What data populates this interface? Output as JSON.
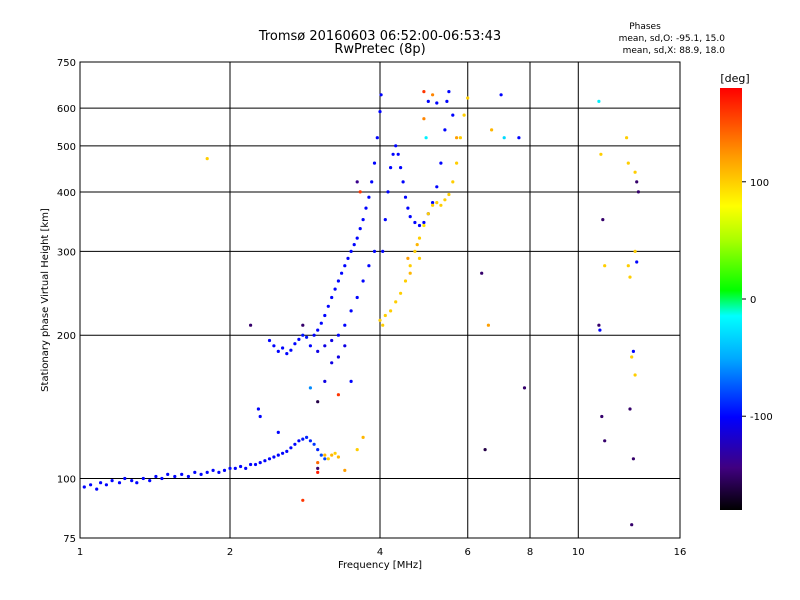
{
  "chart_data": {
    "type": "scatter",
    "title": "Tromsø 20160603 06:52:00-06:53:43",
    "subtitle": "RwPretec (8p)",
    "xlabel": "Frequency [MHz]",
    "ylabel": "Stationary phase Virtual Height [km]",
    "x_scale": "log",
    "y_scale": "log",
    "xlim": [
      1,
      16
    ],
    "ylim": [
      75,
      750
    ],
    "x_ticks": [
      1,
      2,
      4,
      6,
      8,
      10,
      16
    ],
    "y_ticks": [
      75,
      100,
      200,
      300,
      400,
      500,
      600,
      750
    ],
    "grid": true,
    "stats": {
      "title": "Phases",
      "line1": "mean, sd,O: -95.1, 15.0",
      "line2": "mean, sd,X:  88.9, 18.0"
    },
    "colorbar": {
      "label": "[deg]",
      "range": [
        -180,
        180
      ],
      "ticks": [
        100,
        0,
        -100
      ]
    },
    "series": [
      {
        "points": [
          [
            1.02,
            96,
            -100
          ],
          [
            1.05,
            97,
            -100
          ],
          [
            1.08,
            95,
            -100
          ],
          [
            1.1,
            98,
            -100
          ],
          [
            1.13,
            97,
            -100
          ],
          [
            1.16,
            99,
            -100
          ],
          [
            1.2,
            98,
            -100
          ],
          [
            1.23,
            100,
            -100
          ],
          [
            1.27,
            99,
            -100
          ],
          [
            1.3,
            98,
            -100
          ],
          [
            1.34,
            100,
            -100
          ],
          [
            1.38,
            99,
            -100
          ],
          [
            1.42,
            101,
            -100
          ],
          [
            1.46,
            100,
            -100
          ],
          [
            1.5,
            102,
            -100
          ],
          [
            1.55,
            101,
            -100
          ],
          [
            1.6,
            102,
            -100
          ],
          [
            1.65,
            101,
            -100
          ],
          [
            1.7,
            103,
            -100
          ],
          [
            1.75,
            102,
            -100
          ],
          [
            1.8,
            103,
            -100
          ],
          [
            1.85,
            104,
            -100
          ],
          [
            1.9,
            103,
            -100
          ],
          [
            1.95,
            104,
            -100
          ],
          [
            2.0,
            105,
            -100
          ],
          [
            2.05,
            105,
            -100
          ],
          [
            2.1,
            106,
            -100
          ],
          [
            2.15,
            105,
            -100
          ],
          [
            2.2,
            107,
            -100
          ],
          [
            2.25,
            107,
            -100
          ],
          [
            2.3,
            108,
            -100
          ],
          [
            2.35,
            109,
            -100
          ],
          [
            2.4,
            110,
            -100
          ],
          [
            2.45,
            111,
            -100
          ],
          [
            2.5,
            112,
            -100
          ],
          [
            2.55,
            113,
            -100
          ],
          [
            2.6,
            114,
            -100
          ],
          [
            2.65,
            116,
            -100
          ],
          [
            2.7,
            118,
            -100
          ],
          [
            2.75,
            120,
            -100
          ],
          [
            2.8,
            121,
            -95
          ],
          [
            2.85,
            122,
            -90
          ],
          [
            2.9,
            120,
            -90
          ],
          [
            2.95,
            118,
            -85
          ],
          [
            3.0,
            115,
            -90
          ],
          [
            3.05,
            112,
            -80
          ],
          [
            3.1,
            110,
            -80
          ],
          [
            2.3,
            135,
            -100
          ],
          [
            2.28,
            140,
            -100
          ],
          [
            2.5,
            125,
            -100
          ]
        ]
      },
      {
        "points": [
          [
            2.4,
            195,
            -100
          ],
          [
            2.45,
            190,
            -100
          ],
          [
            2.5,
            185,
            -100
          ],
          [
            2.55,
            188,
            -100
          ],
          [
            2.6,
            183,
            -100
          ],
          [
            2.65,
            186,
            -100
          ],
          [
            2.7,
            192,
            -100
          ],
          [
            2.75,
            196,
            -100
          ],
          [
            2.8,
            200,
            -95
          ],
          [
            2.85,
            198,
            -95
          ],
          [
            2.9,
            190,
            -100
          ],
          [
            2.95,
            200,
            -100
          ],
          [
            3.0,
            205,
            -100
          ],
          [
            3.05,
            212,
            -100
          ],
          [
            3.1,
            220,
            -100
          ],
          [
            3.15,
            230,
            -100
          ],
          [
            3.2,
            240,
            -100
          ],
          [
            3.25,
            250,
            -100
          ],
          [
            3.3,
            260,
            -100
          ],
          [
            3.35,
            270,
            -100
          ],
          [
            3.4,
            280,
            -100
          ],
          [
            3.45,
            290,
            -100
          ],
          [
            3.5,
            300,
            -100
          ],
          [
            3.55,
            310,
            -100
          ],
          [
            3.6,
            320,
            -100
          ],
          [
            3.65,
            335,
            -100
          ],
          [
            3.7,
            350,
            -100
          ],
          [
            3.75,
            370,
            -100
          ],
          [
            3.8,
            390,
            -100
          ],
          [
            3.85,
            420,
            -100
          ],
          [
            3.9,
            460,
            -100
          ],
          [
            3.95,
            520,
            -100
          ],
          [
            4.0,
            590,
            -100
          ],
          [
            4.02,
            640,
            -100
          ],
          [
            3.0,
            185,
            -110
          ],
          [
            3.1,
            190,
            -110
          ],
          [
            3.2,
            195,
            -110
          ],
          [
            3.3,
            200,
            -100
          ],
          [
            3.4,
            210,
            -100
          ],
          [
            3.5,
            225,
            -100
          ],
          [
            3.6,
            240,
            -100
          ],
          [
            3.7,
            260,
            -100
          ],
          [
            3.8,
            280,
            -100
          ],
          [
            3.9,
            300,
            -100
          ],
          [
            3.2,
            175,
            -110
          ],
          [
            3.3,
            180,
            -110
          ],
          [
            3.4,
            190,
            -110
          ]
        ]
      },
      {
        "points": [
          [
            4.05,
            300,
            -100
          ],
          [
            4.1,
            350,
            -100
          ],
          [
            4.15,
            400,
            -100
          ],
          [
            4.2,
            450,
            -100
          ],
          [
            4.25,
            480,
            -100
          ],
          [
            4.3,
            500,
            -100
          ],
          [
            4.35,
            480,
            -100
          ],
          [
            4.4,
            450,
            -100
          ],
          [
            4.45,
            420,
            -100
          ],
          [
            4.5,
            390,
            -100
          ],
          [
            4.55,
            370,
            -100
          ],
          [
            4.6,
            355,
            -100
          ],
          [
            4.7,
            345,
            -100
          ],
          [
            4.8,
            340,
            -100
          ],
          [
            4.9,
            345,
            -100
          ],
          [
            5.0,
            360,
            -100
          ],
          [
            5.1,
            380,
            -100
          ],
          [
            5.2,
            410,
            -100
          ],
          [
            5.3,
            460,
            -100
          ],
          [
            5.4,
            540,
            -100
          ],
          [
            5.45,
            620,
            -100
          ],
          [
            5.5,
            650,
            -100
          ]
        ]
      },
      {
        "points": [
          [
            4.0,
            215,
            100
          ],
          [
            4.05,
            210,
            100
          ],
          [
            4.1,
            220,
            100
          ],
          [
            4.2,
            225,
            100
          ],
          [
            4.3,
            235,
            100
          ],
          [
            4.4,
            245,
            100
          ],
          [
            4.5,
            260,
            100
          ],
          [
            4.6,
            280,
            100
          ],
          [
            4.7,
            300,
            100
          ],
          [
            4.8,
            320,
            100
          ],
          [
            4.9,
            340,
            90
          ],
          [
            5.0,
            360,
            100
          ],
          [
            5.1,
            375,
            100
          ],
          [
            5.2,
            380,
            100
          ],
          [
            5.3,
            375,
            100
          ],
          [
            5.4,
            385,
            100
          ],
          [
            5.5,
            395,
            100
          ],
          [
            5.6,
            420,
            100
          ],
          [
            5.7,
            460,
            100
          ],
          [
            5.8,
            520,
            100
          ],
          [
            5.9,
            580,
            100
          ],
          [
            6.0,
            630,
            100
          ],
          [
            4.6,
            270,
            110
          ],
          [
            4.55,
            290,
            120
          ],
          [
            4.75,
            310,
            110
          ],
          [
            4.8,
            290,
            100
          ]
        ]
      },
      {
        "points": [
          [
            3.1,
            112,
            110
          ],
          [
            3.2,
            112,
            110
          ],
          [
            3.3,
            111,
            110
          ],
          [
            3.15,
            110,
            100
          ],
          [
            3.25,
            113,
            100
          ],
          [
            3.0,
            105,
            -150
          ],
          [
            3.0,
            108,
            140
          ],
          [
            3.0,
            103,
            170
          ],
          [
            2.8,
            90,
            160
          ],
          [
            3.4,
            104,
            120
          ],
          [
            3.6,
            115,
            100
          ],
          [
            3.7,
            122,
            110
          ]
        ]
      },
      {
        "points": [
          [
            1.8,
            470,
            100
          ],
          [
            2.2,
            210,
            -150
          ],
          [
            2.8,
            210,
            -150
          ],
          [
            2.9,
            155,
            -60
          ],
          [
            3.0,
            145,
            -160
          ],
          [
            3.1,
            160,
            -110
          ],
          [
            3.3,
            150,
            160
          ],
          [
            3.5,
            160,
            -100
          ],
          [
            3.6,
            420,
            -140
          ],
          [
            3.65,
            400,
            160
          ],
          [
            4.9,
            650,
            160
          ],
          [
            5.0,
            620,
            -100
          ],
          [
            5.1,
            640,
            130
          ],
          [
            5.2,
            615,
            -100
          ],
          [
            4.9,
            570,
            130
          ],
          [
            4.95,
            520,
            -20
          ],
          [
            5.6,
            580,
            -100
          ],
          [
            5.7,
            520,
            120
          ],
          [
            6.4,
            270,
            -150
          ],
          [
            6.5,
            115,
            -160
          ],
          [
            6.6,
            210,
            120
          ],
          [
            6.7,
            540,
            110
          ],
          [
            7.0,
            640,
            -100
          ],
          [
            7.1,
            520,
            -30
          ],
          [
            7.6,
            520,
            -100
          ],
          [
            7.8,
            155,
            -150
          ],
          [
            11.0,
            620,
            -20
          ],
          [
            11.1,
            480,
            100
          ],
          [
            11.2,
            350,
            -150
          ],
          [
            11.3,
            280,
            100
          ],
          [
            11.0,
            210,
            -150
          ],
          [
            11.05,
            205,
            -100
          ],
          [
            11.15,
            135,
            -150
          ],
          [
            11.3,
            120,
            -150
          ],
          [
            12.5,
            520,
            100
          ],
          [
            12.6,
            460,
            100
          ],
          [
            13.0,
            440,
            100
          ],
          [
            13.1,
            420,
            -150
          ],
          [
            13.2,
            400,
            -150
          ],
          [
            12.6,
            280,
            100
          ],
          [
            12.7,
            265,
            100
          ],
          [
            13.0,
            300,
            100
          ],
          [
            13.1,
            285,
            -100
          ],
          [
            12.8,
            180,
            100
          ],
          [
            13.0,
            165,
            100
          ],
          [
            12.9,
            185,
            -100
          ],
          [
            12.7,
            140,
            -150
          ],
          [
            12.9,
            110,
            -150
          ],
          [
            12.8,
            80,
            -150
          ]
        ]
      }
    ]
  }
}
